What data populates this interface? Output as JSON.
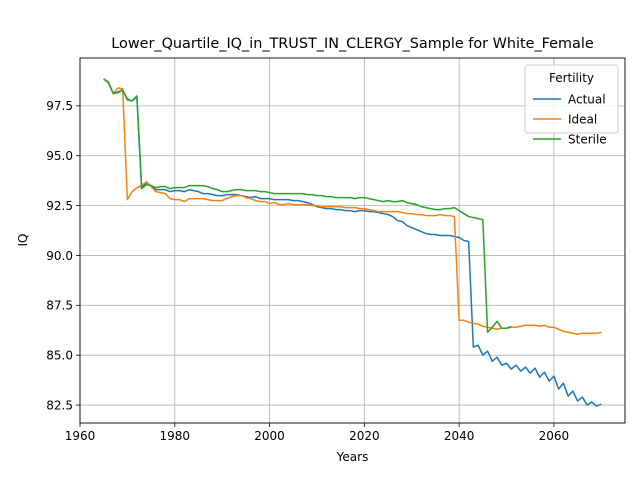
{
  "chart_data": {
    "type": "line",
    "title": "Lower_Quartile_IQ_in_TRUST_IN_CLERGY_Sample for White_Female",
    "xlabel": "Years",
    "ylabel": "IQ",
    "xlim": [
      1960,
      2075
    ],
    "ylim": [
      81.6,
      99.9
    ],
    "xticks": [
      1960,
      1980,
      2000,
      2020,
      2040,
      2060
    ],
    "yticks": [
      82.5,
      85.0,
      87.5,
      90.0,
      92.5,
      95.0,
      97.5
    ],
    "grid": true,
    "legend": {
      "title": "Fertility",
      "position": "top-right"
    },
    "series": [
      {
        "name": "Actual",
        "color": "#1f77b4",
        "points": [
          [
            1965,
            98.85
          ],
          [
            1966,
            98.7
          ],
          [
            1967,
            98.1
          ],
          [
            1968,
            98.2
          ],
          [
            1969,
            98.3
          ],
          [
            1970,
            97.8
          ],
          [
            1971,
            97.75
          ],
          [
            1972,
            97.95
          ],
          [
            1973,
            93.45
          ],
          [
            1974,
            93.6
          ],
          [
            1975,
            93.5
          ],
          [
            1976,
            93.3
          ],
          [
            1977,
            93.3
          ],
          [
            1978,
            93.3
          ],
          [
            1979,
            93.2
          ],
          [
            1980,
            93.25
          ],
          [
            1981,
            93.25
          ],
          [
            1982,
            93.2
          ],
          [
            1983,
            93.3
          ],
          [
            1984,
            93.25
          ],
          [
            1985,
            93.2
          ],
          [
            1986,
            93.1
          ],
          [
            1987,
            93.1
          ],
          [
            1988,
            93.05
          ],
          [
            1989,
            93.0
          ],
          [
            1990,
            93.0
          ],
          [
            1991,
            93.05
          ],
          [
            1992,
            93.05
          ],
          [
            1993,
            93.05
          ],
          [
            1994,
            93.0
          ],
          [
            1995,
            92.95
          ],
          [
            1996,
            92.9
          ],
          [
            1997,
            92.95
          ],
          [
            1998,
            92.85
          ],
          [
            1999,
            92.85
          ],
          [
            2000,
            92.85
          ],
          [
            2001,
            92.8
          ],
          [
            2002,
            92.8
          ],
          [
            2003,
            92.8
          ],
          [
            2004,
            92.8
          ],
          [
            2005,
            92.75
          ],
          [
            2006,
            92.75
          ],
          [
            2007,
            92.7
          ],
          [
            2008,
            92.65
          ],
          [
            2009,
            92.55
          ],
          [
            2010,
            92.45
          ],
          [
            2011,
            92.4
          ],
          [
            2012,
            92.35
          ],
          [
            2013,
            92.35
          ],
          [
            2014,
            92.3
          ],
          [
            2015,
            92.3
          ],
          [
            2016,
            92.25
          ],
          [
            2017,
            92.25
          ],
          [
            2018,
            92.2
          ],
          [
            2019,
            92.25
          ],
          [
            2020,
            92.25
          ],
          [
            2021,
            92.2
          ],
          [
            2022,
            92.2
          ],
          [
            2023,
            92.15
          ],
          [
            2024,
            92.1
          ],
          [
            2025,
            92.05
          ],
          [
            2026,
            91.95
          ],
          [
            2027,
            91.75
          ],
          [
            2028,
            91.7
          ],
          [
            2029,
            91.5
          ],
          [
            2030,
            91.4
          ],
          [
            2031,
            91.3
          ],
          [
            2032,
            91.2
          ],
          [
            2033,
            91.1
          ],
          [
            2034,
            91.05
          ],
          [
            2035,
            91.05
          ],
          [
            2036,
            91.0
          ],
          [
            2037,
            91.0
          ],
          [
            2038,
            91.0
          ],
          [
            2039,
            90.95
          ],
          [
            2040,
            90.9
          ],
          [
            2041,
            90.75
          ],
          [
            2042,
            90.7
          ],
          [
            2043,
            85.4
          ],
          [
            2044,
            85.5
          ],
          [
            2045,
            85.0
          ],
          [
            2046,
            85.2
          ],
          [
            2047,
            84.7
          ],
          [
            2048,
            84.9
          ],
          [
            2049,
            84.5
          ],
          [
            2050,
            84.6
          ],
          [
            2051,
            84.3
          ],
          [
            2052,
            84.5
          ],
          [
            2053,
            84.2
          ],
          [
            2054,
            84.4
          ],
          [
            2055,
            84.1
          ],
          [
            2056,
            84.35
          ],
          [
            2057,
            83.9
          ],
          [
            2058,
            84.15
          ],
          [
            2059,
            83.7
          ],
          [
            2060,
            83.95
          ],
          [
            2061,
            83.3
          ],
          [
            2062,
            83.6
          ],
          [
            2063,
            82.95
          ],
          [
            2064,
            83.2
          ],
          [
            2065,
            82.7
          ],
          [
            2066,
            82.9
          ],
          [
            2067,
            82.5
          ],
          [
            2068,
            82.65
          ],
          [
            2069,
            82.45
          ],
          [
            2070,
            82.55
          ]
        ]
      },
      {
        "name": "Ideal",
        "color": "#ff7f0e",
        "points": [
          [
            1965,
            98.85
          ],
          [
            1966,
            98.7
          ],
          [
            1967,
            98.1
          ],
          [
            1968,
            98.4
          ],
          [
            1969,
            98.35
          ],
          [
            1970,
            92.8
          ],
          [
            1971,
            93.2
          ],
          [
            1972,
            93.4
          ],
          [
            1973,
            93.5
          ],
          [
            1974,
            93.7
          ],
          [
            1975,
            93.45
          ],
          [
            1976,
            93.2
          ],
          [
            1977,
            93.15
          ],
          [
            1978,
            93.1
          ],
          [
            1979,
            92.85
          ],
          [
            1980,
            92.8
          ],
          [
            1981,
            92.8
          ],
          [
            1982,
            92.7
          ],
          [
            1983,
            92.85
          ],
          [
            1984,
            92.85
          ],
          [
            1985,
            92.85
          ],
          [
            1986,
            92.85
          ],
          [
            1987,
            92.8
          ],
          [
            1988,
            92.75
          ],
          [
            1989,
            92.75
          ],
          [
            1990,
            92.75
          ],
          [
            1991,
            92.85
          ],
          [
            1992,
            92.95
          ],
          [
            1993,
            93.0
          ],
          [
            1994,
            93.0
          ],
          [
            1995,
            92.9
          ],
          [
            1996,
            92.85
          ],
          [
            1997,
            92.75
          ],
          [
            1998,
            92.7
          ],
          [
            1999,
            92.7
          ],
          [
            2000,
            92.6
          ],
          [
            2001,
            92.65
          ],
          [
            2002,
            92.55
          ],
          [
            2003,
            92.55
          ],
          [
            2004,
            92.6
          ],
          [
            2005,
            92.55
          ],
          [
            2006,
            92.55
          ],
          [
            2007,
            92.55
          ],
          [
            2008,
            92.55
          ],
          [
            2009,
            92.5
          ],
          [
            2010,
            92.5
          ],
          [
            2011,
            92.45
          ],
          [
            2012,
            92.45
          ],
          [
            2013,
            92.45
          ],
          [
            2014,
            92.45
          ],
          [
            2015,
            92.45
          ],
          [
            2016,
            92.4
          ],
          [
            2017,
            92.4
          ],
          [
            2018,
            92.4
          ],
          [
            2019,
            92.35
          ],
          [
            2020,
            92.35
          ],
          [
            2021,
            92.3
          ],
          [
            2022,
            92.25
          ],
          [
            2023,
            92.2
          ],
          [
            2024,
            92.2
          ],
          [
            2025,
            92.2
          ],
          [
            2026,
            92.2
          ],
          [
            2027,
            92.2
          ],
          [
            2028,
            92.15
          ],
          [
            2029,
            92.1
          ],
          [
            2030,
            92.1
          ],
          [
            2031,
            92.05
          ],
          [
            2032,
            92.05
          ],
          [
            2033,
            92.0
          ],
          [
            2034,
            92.0
          ],
          [
            2035,
            92.0
          ],
          [
            2036,
            92.05
          ],
          [
            2037,
            92.0
          ],
          [
            2038,
            92.0
          ],
          [
            2039,
            91.95
          ],
          [
            2040,
            86.75
          ],
          [
            2041,
            86.75
          ],
          [
            2042,
            86.65
          ],
          [
            2043,
            86.6
          ],
          [
            2044,
            86.55
          ],
          [
            2045,
            86.45
          ],
          [
            2046,
            86.4
          ],
          [
            2047,
            86.35
          ],
          [
            2048,
            86.3
          ],
          [
            2049,
            86.35
          ],
          [
            2050,
            86.35
          ],
          [
            2051,
            86.4
          ],
          [
            2052,
            86.4
          ],
          [
            2053,
            86.45
          ],
          [
            2054,
            86.5
          ],
          [
            2055,
            86.5
          ],
          [
            2056,
            86.5
          ],
          [
            2057,
            86.45
          ],
          [
            2058,
            86.5
          ],
          [
            2059,
            86.4
          ],
          [
            2060,
            86.4
          ],
          [
            2061,
            86.3
          ],
          [
            2062,
            86.2
          ],
          [
            2063,
            86.15
          ],
          [
            2064,
            86.1
          ],
          [
            2065,
            86.05
          ],
          [
            2066,
            86.1
          ],
          [
            2067,
            86.1
          ],
          [
            2068,
            86.1
          ],
          [
            2069,
            86.1
          ],
          [
            2070,
            86.15
          ]
        ]
      },
      {
        "name": "Sterile",
        "color": "#2ca02c",
        "points": [
          [
            1965,
            98.85
          ],
          [
            1966,
            98.65
          ],
          [
            1967,
            98.15
          ],
          [
            1968,
            98.15
          ],
          [
            1969,
            98.3
          ],
          [
            1970,
            97.85
          ],
          [
            1971,
            97.75
          ],
          [
            1972,
            98.0
          ],
          [
            1973,
            93.35
          ],
          [
            1974,
            93.55
          ],
          [
            1975,
            93.5
          ],
          [
            1976,
            93.4
          ],
          [
            1977,
            93.45
          ],
          [
            1978,
            93.45
          ],
          [
            1979,
            93.35
          ],
          [
            1980,
            93.4
          ],
          [
            1981,
            93.4
          ],
          [
            1982,
            93.4
          ],
          [
            1983,
            93.5
          ],
          [
            1984,
            93.5
          ],
          [
            1985,
            93.5
          ],
          [
            1986,
            93.5
          ],
          [
            1987,
            93.45
          ],
          [
            1988,
            93.35
          ],
          [
            1989,
            93.3
          ],
          [
            1990,
            93.2
          ],
          [
            1991,
            93.2
          ],
          [
            1992,
            93.25
          ],
          [
            1993,
            93.3
          ],
          [
            1994,
            93.3
          ],
          [
            1995,
            93.25
          ],
          [
            1996,
            93.25
          ],
          [
            1997,
            93.25
          ],
          [
            1998,
            93.2
          ],
          [
            1999,
            93.2
          ],
          [
            2000,
            93.15
          ],
          [
            2001,
            93.1
          ],
          [
            2002,
            93.1
          ],
          [
            2003,
            93.1
          ],
          [
            2004,
            93.1
          ],
          [
            2005,
            93.1
          ],
          [
            2006,
            93.1
          ],
          [
            2007,
            93.1
          ],
          [
            2008,
            93.05
          ],
          [
            2009,
            93.05
          ],
          [
            2010,
            93.0
          ],
          [
            2011,
            93.0
          ],
          [
            2012,
            92.95
          ],
          [
            2013,
            92.95
          ],
          [
            2014,
            92.9
          ],
          [
            2015,
            92.9
          ],
          [
            2016,
            92.9
          ],
          [
            2017,
            92.9
          ],
          [
            2018,
            92.85
          ],
          [
            2019,
            92.9
          ],
          [
            2020,
            92.9
          ],
          [
            2021,
            92.85
          ],
          [
            2022,
            92.8
          ],
          [
            2023,
            92.75
          ],
          [
            2024,
            92.7
          ],
          [
            2025,
            92.75
          ],
          [
            2026,
            92.7
          ],
          [
            2027,
            92.7
          ],
          [
            2028,
            92.75
          ],
          [
            2029,
            92.65
          ],
          [
            2030,
            92.6
          ],
          [
            2031,
            92.55
          ],
          [
            2032,
            92.45
          ],
          [
            2033,
            92.4
          ],
          [
            2034,
            92.35
          ],
          [
            2035,
            92.3
          ],
          [
            2036,
            92.3
          ],
          [
            2037,
            92.35
          ],
          [
            2038,
            92.35
          ],
          [
            2039,
            92.4
          ],
          [
            2040,
            92.25
          ],
          [
            2041,
            92.1
          ],
          [
            2042,
            91.95
          ],
          [
            2043,
            91.9
          ],
          [
            2044,
            91.85
          ],
          [
            2045,
            91.8
          ],
          [
            2046,
            86.15
          ],
          [
            2047,
            86.4
          ],
          [
            2048,
            86.7
          ],
          [
            2049,
            86.35
          ],
          [
            2050,
            86.35
          ],
          [
            2051,
            86.45
          ]
        ]
      }
    ]
  }
}
